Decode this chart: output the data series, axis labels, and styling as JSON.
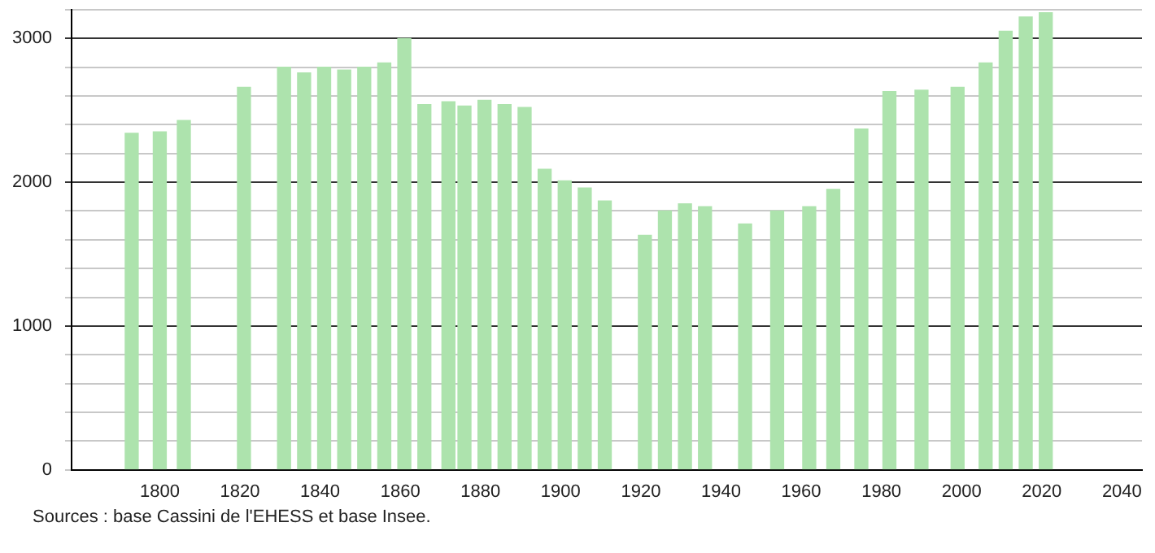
{
  "chart_data": {
    "type": "bar",
    "x": [
      1793,
      1800,
      1806,
      1821,
      1831,
      1836,
      1841,
      1846,
      1851,
      1856,
      1861,
      1866,
      1872,
      1876,
      1881,
      1886,
      1891,
      1896,
      1901,
      1906,
      1911,
      1921,
      1926,
      1931,
      1936,
      1946,
      1954,
      1962,
      1968,
      1975,
      1982,
      1990,
      1999,
      2006,
      2011,
      2016,
      2021
    ],
    "values": [
      2340,
      2350,
      2430,
      2660,
      2800,
      2760,
      2800,
      2780,
      2800,
      2830,
      3000,
      2540,
      2560,
      2530,
      2570,
      2540,
      2520,
      2090,
      2010,
      1960,
      1870,
      1630,
      1800,
      1850,
      1830,
      1710,
      1800,
      1830,
      1950,
      2370,
      2630,
      2640,
      2660,
      2830,
      3050,
      3150,
      3180
    ],
    "color": "#ade3ad",
    "xlim": [
      1778,
      2045
    ],
    "xticks": [
      1800,
      1820,
      1840,
      1860,
      1880,
      1900,
      1920,
      1940,
      1960,
      1980,
      2000,
      2020,
      2040
    ],
    "ylim": [
      0,
      3200
    ],
    "yticks": [
      0,
      {
        "value": 200,
        "label": null
      },
      {
        "value": 400,
        "label": null
      },
      {
        "value": 600,
        "label": null
      },
      {
        "value": 800,
        "label": null
      },
      1000,
      {
        "value": 1200,
        "label": null
      },
      {
        "value": 1400,
        "label": null
      },
      {
        "value": 1600,
        "label": null
      },
      {
        "value": 1800,
        "label": null
      },
      2000,
      {
        "value": 2200,
        "label": null
      },
      {
        "value": 2400,
        "label": null
      },
      {
        "value": 2600,
        "label": null
      },
      {
        "value": 2800,
        "label": null
      },
      3000,
      {
        "value": 3200,
        "label": null
      }
    ],
    "grid": "y",
    "legend": false,
    "annotations": [
      "Sources : base Cassini de l'EHESS et base Insee."
    ]
  }
}
